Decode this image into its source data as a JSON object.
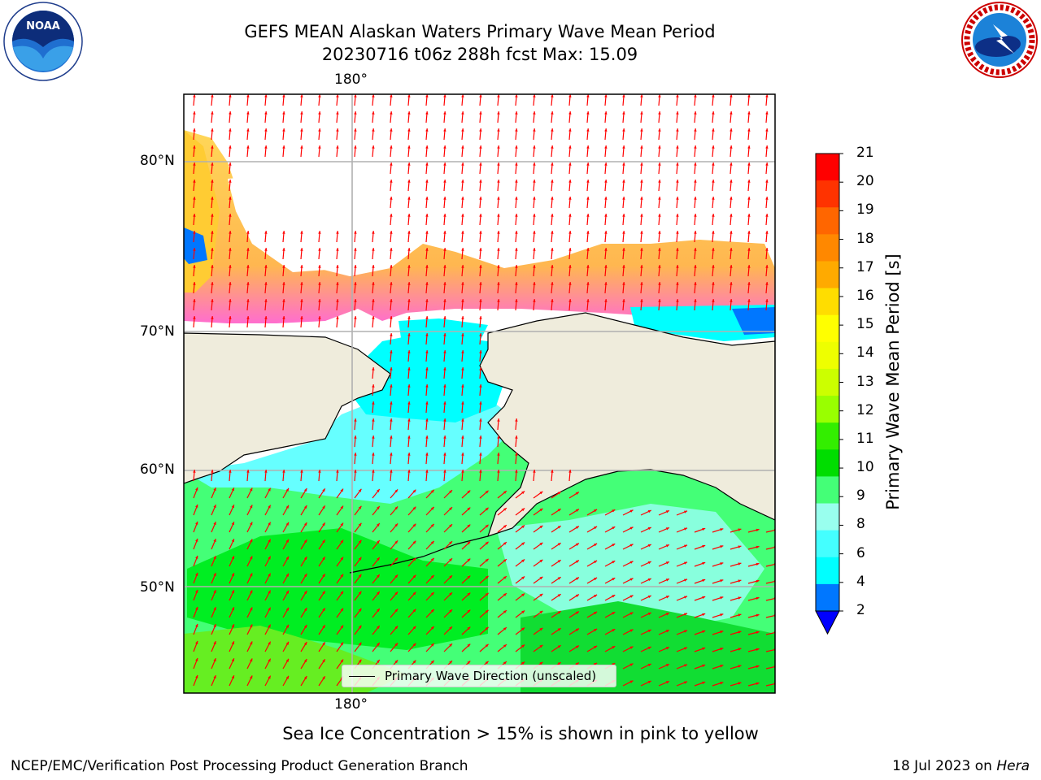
{
  "title": {
    "line1": "GEFS MEAN Alaskan Waters Primary Wave Mean Period",
    "line2": "20230716 t06z 288h fcst   Max: 15.09"
  },
  "logos": {
    "left": {
      "name": "noaa-logo",
      "text": "NOAA",
      "ring_text": "NATIONAL OCEANIC AND ATMOSPHERIC ADMINISTRATION · U.S. DEPARTMENT OF COMMERCE"
    },
    "right": {
      "name": "nws-logo",
      "ring_text": "NATIONAL WEATHER SERVICE"
    }
  },
  "map": {
    "lon_label_top": "180°",
    "lon_label_bottom": "180°",
    "lat_labels": [
      "80°N",
      "70°N",
      "60°N",
      "50°N"
    ],
    "legend_label": "Primary Wave Direction (unscaled)",
    "land_color": "#efecdc",
    "arrow_color": "#ff0000"
  },
  "colorbar": {
    "label": "Primary Wave Mean Period [s]",
    "ticks": [
      "21",
      "20",
      "19",
      "18",
      "17",
      "16",
      "15",
      "14",
      "13",
      "12",
      "11",
      "10",
      "9",
      "8",
      "6",
      "4",
      "2"
    ],
    "colors": [
      "#ff0000",
      "#ff3300",
      "#ff6600",
      "#ff8800",
      "#ffaa00",
      "#ffdd00",
      "#ffff00",
      "#eeff00",
      "#ccff00",
      "#99ff00",
      "#33ee00",
      "#00dd00",
      "#44ff77",
      "#99ffee",
      "#44ffff",
      "#00ffff",
      "#0077ff"
    ],
    "extend_color": "#0000ff"
  },
  "caption": "Sea Ice Concentration > 15% is shown in pink to yellow",
  "footer": {
    "left": "NCEP/EMC/Verification Post Processing Product Generation Branch",
    "right_date": "18 Jul 2023 on ",
    "right_host": "Hera"
  }
}
